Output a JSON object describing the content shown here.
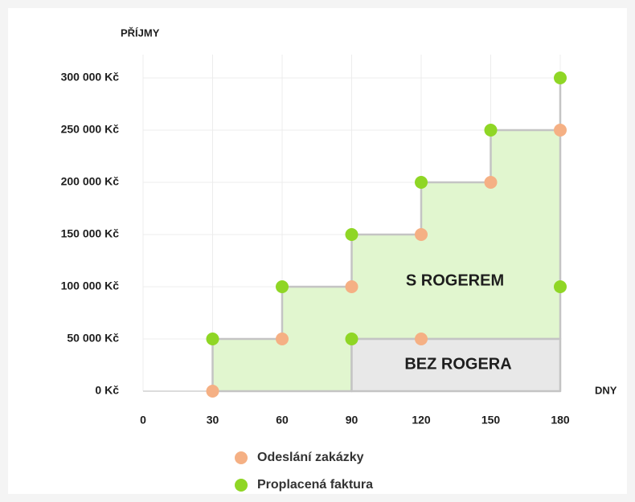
{
  "chart_data": {
    "type": "scatter",
    "ylabel": "PŘÍJMY",
    "xlabel": "DNY",
    "xlim": [
      0,
      180
    ],
    "xticks": [
      0,
      30,
      60,
      90,
      120,
      150,
      180
    ],
    "ylim": [
      0,
      300000
    ],
    "yticks": [
      {
        "value": 0,
        "label": "0 Kč"
      },
      {
        "value": 50000,
        "label": "50 000 Kč"
      },
      {
        "value": 100000,
        "label": "100 000 Kč"
      },
      {
        "value": 150000,
        "label": "150 000 Kč"
      },
      {
        "value": 200000,
        "label": "200 000 Kč"
      },
      {
        "value": 250000,
        "label": "250 000 Kč"
      },
      {
        "value": 300000,
        "label": "300 000 Kč"
      }
    ],
    "grid": true,
    "areas": [
      {
        "name": "S ROGEREM",
        "color": "#e1f6cf",
        "x": [
          30,
          30,
          60,
          60,
          90,
          90,
          120,
          120,
          150,
          150,
          180,
          180,
          180,
          90,
          90
        ],
        "values": [
          0,
          50000,
          50000,
          100000,
          100000,
          150000,
          150000,
          200000,
          200000,
          250000,
          250000,
          300000,
          50000,
          50000,
          0
        ]
      },
      {
        "name": "BEZ ROGERA",
        "color": "#e8e8e8",
        "x": [
          90,
          90,
          180,
          180
        ],
        "values": [
          0,
          50000,
          50000,
          0
        ]
      }
    ],
    "series": [
      {
        "name": "Odeslání zakázky",
        "color": "#f5b084",
        "x": [
          30,
          60,
          90,
          120,
          120,
          150,
          180
        ],
        "values": [
          0,
          50000,
          100000,
          50000,
          150000,
          200000,
          250000
        ]
      },
      {
        "name": "Proplacená faktura",
        "color": "#8fd625",
        "x": [
          30,
          60,
          90,
          90,
          120,
          150,
          180,
          180
        ],
        "values": [
          50000,
          100000,
          150000,
          50000,
          200000,
          250000,
          300000,
          100000
        ]
      }
    ]
  }
}
